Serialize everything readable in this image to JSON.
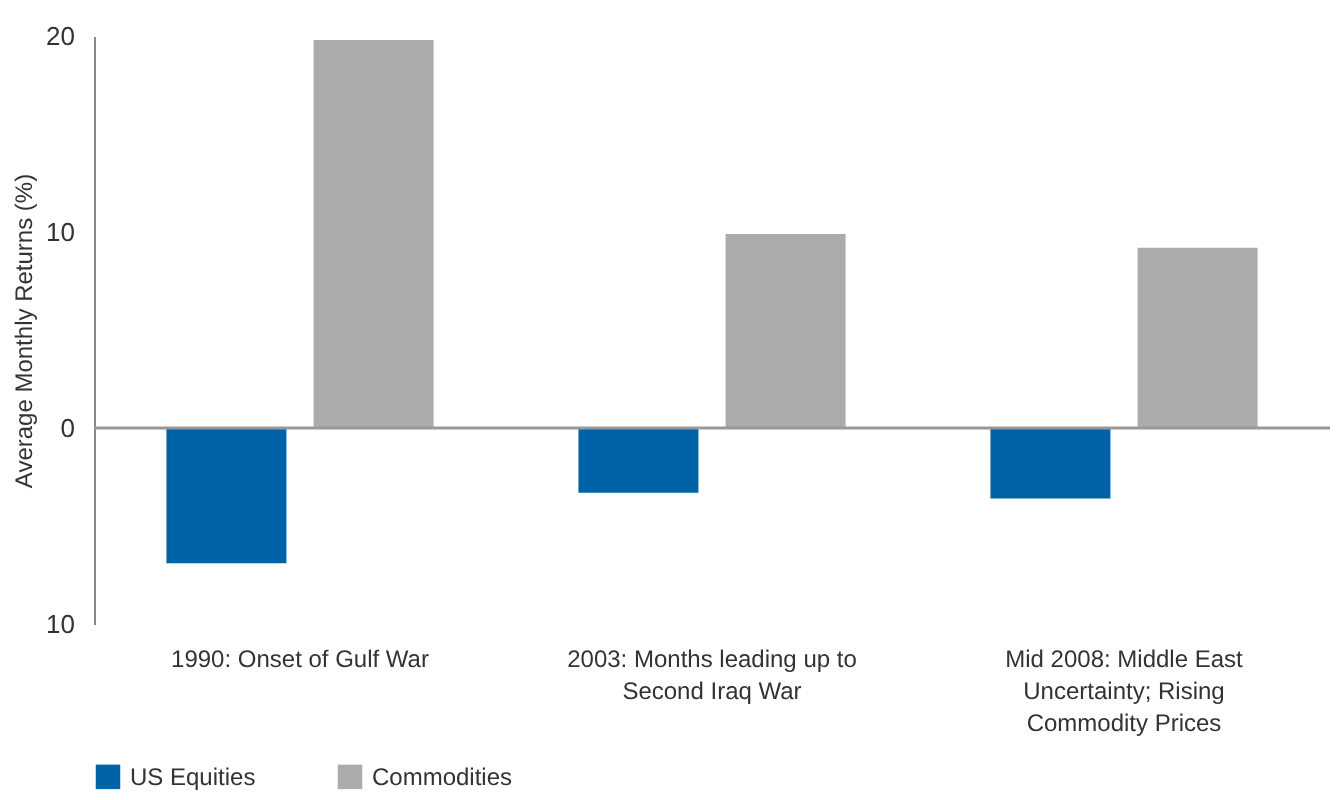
{
  "chart_data": {
    "type": "bar",
    "ylabel": "Average Monthly Returns (%)",
    "categories": [
      "1990: Onset of Gulf War",
      "2003: Months leading up to Second Iraq War",
      "Mid 2008: Middle East Uncertainty; Rising Commodity Prices"
    ],
    "series": [
      {
        "name": "US Equities",
        "color": "#0063a7",
        "values": [
          -6.9,
          -3.3,
          -3.6
        ]
      },
      {
        "name": "Commodities",
        "color": "#ababab",
        "values": [
          19.8,
          9.9,
          9.2
        ]
      }
    ],
    "ylim": [
      -10,
      20
    ],
    "yticks": [
      {
        "value": -10,
        "label": "10"
      },
      0,
      10,
      20
    ],
    "ref_lines": [
      {
        "axis": "y",
        "value": 0,
        "color": "#999999"
      }
    ],
    "legend": "bottom left"
  }
}
